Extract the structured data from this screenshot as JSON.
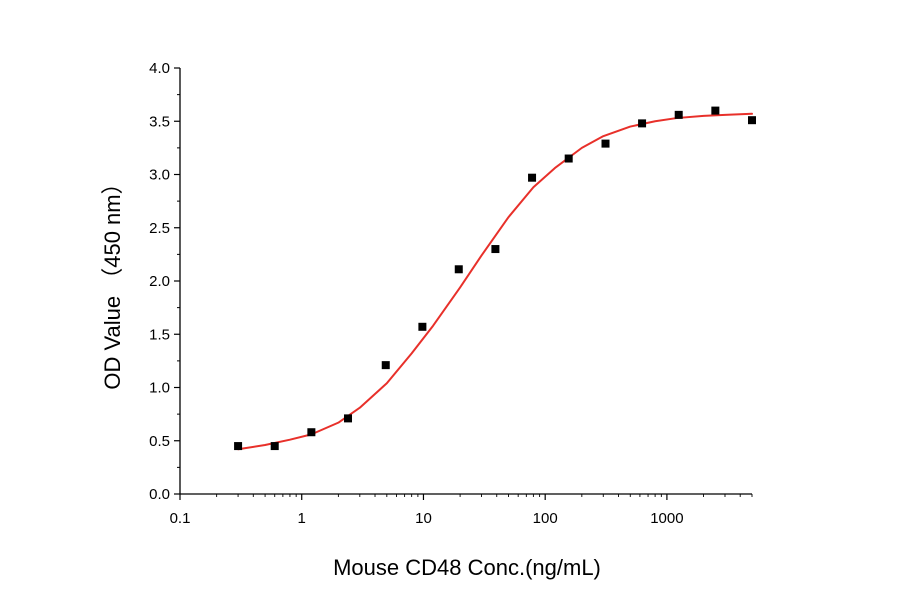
{
  "chart_data": {
    "type": "scatter",
    "title": "",
    "xlabel": "Mouse CD48 Conc.(ng/mL)",
    "ylabel": "OD Value （450 nm）",
    "x_scale": "log",
    "xlim": [
      0.1,
      5000
    ],
    "ylim": [
      0.0,
      4.0
    ],
    "grid": false,
    "x_ticks": [
      0.1,
      1,
      10,
      100,
      1000
    ],
    "x_tick_labels": [
      "0.1",
      "1",
      "10",
      "100",
      "1000"
    ],
    "y_ticks": [
      0.0,
      0.5,
      1.0,
      1.5,
      2.0,
      2.5,
      3.0,
      3.5,
      4.0
    ],
    "y_tick_labels": [
      "0.0",
      "0.5",
      "1.0",
      "1.5",
      "2.0",
      "2.5",
      "3.0",
      "3.5",
      "4.0"
    ],
    "series": [
      {
        "type": "scatter",
        "marker": "square",
        "color": "#000000",
        "x": [
          0.3,
          0.6,
          1.2,
          2.4,
          4.9,
          9.8,
          19.5,
          39,
          78,
          156,
          313,
          625,
          1250,
          2500,
          5000
        ],
        "y": [
          0.45,
          0.45,
          0.58,
          0.71,
          1.21,
          1.57,
          2.11,
          2.3,
          2.97,
          3.15,
          3.29,
          3.48,
          3.56,
          3.6,
          3.51
        ]
      },
      {
        "type": "line",
        "color": "#e8302a",
        "x": [
          0.3,
          0.5,
          0.8,
          1.2,
          2,
          3,
          5,
          8,
          12,
          20,
          30,
          50,
          80,
          120,
          200,
          300,
          500,
          800,
          1200,
          2000,
          3000,
          5000
        ],
        "y": [
          0.42,
          0.46,
          0.51,
          0.56,
          0.67,
          0.81,
          1.04,
          1.32,
          1.58,
          1.94,
          2.24,
          2.6,
          2.88,
          3.06,
          3.25,
          3.36,
          3.45,
          3.5,
          3.53,
          3.55,
          3.56,
          3.57
        ]
      }
    ]
  }
}
